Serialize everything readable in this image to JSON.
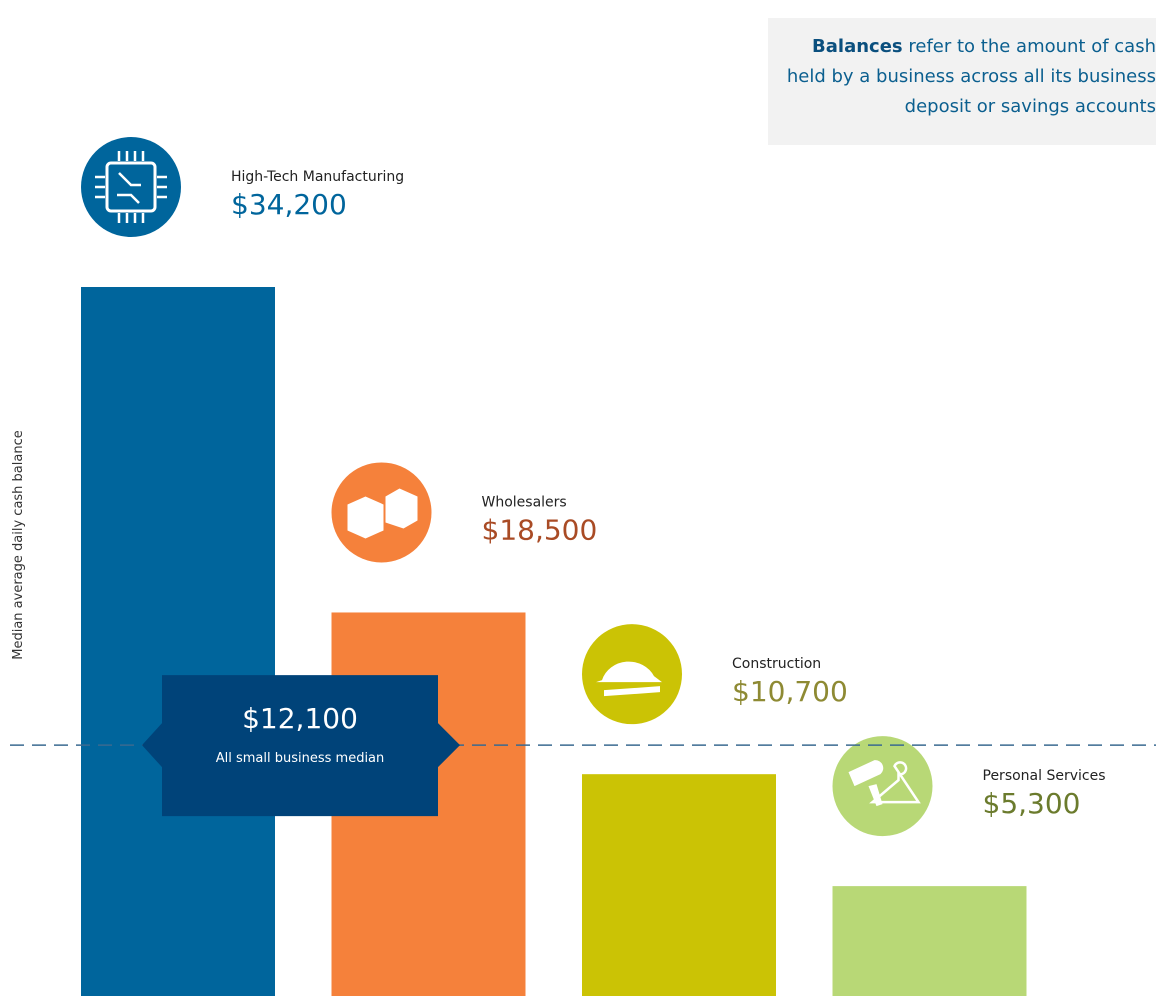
{
  "chart_data": {
    "type": "bar",
    "y_label": "Median average daily cash balance",
    "note": {
      "bold": "Balances",
      "text": "refer to the amount of cash held by a business across all its business deposit or savings accounts"
    },
    "categories": [
      "High-Tech Manufacturing",
      "Wholesalers",
      "Construction",
      "Personal Services"
    ],
    "values": [
      34200,
      18500,
      10700,
      5300
    ],
    "value_labels": [
      "$34,200",
      "$18,500",
      "$10,700",
      "$5,300"
    ],
    "colors": [
      "#00659c",
      "#f5813b",
      "#cbc305",
      "#b8d876"
    ],
    "label_colors": [
      "#00659c",
      "#a94b25",
      "#8e8a33",
      "#6b7b2d"
    ],
    "median": {
      "value": 12100,
      "value_label": "$12,100",
      "label": "All small business median",
      "color": "#004379"
    }
  }
}
